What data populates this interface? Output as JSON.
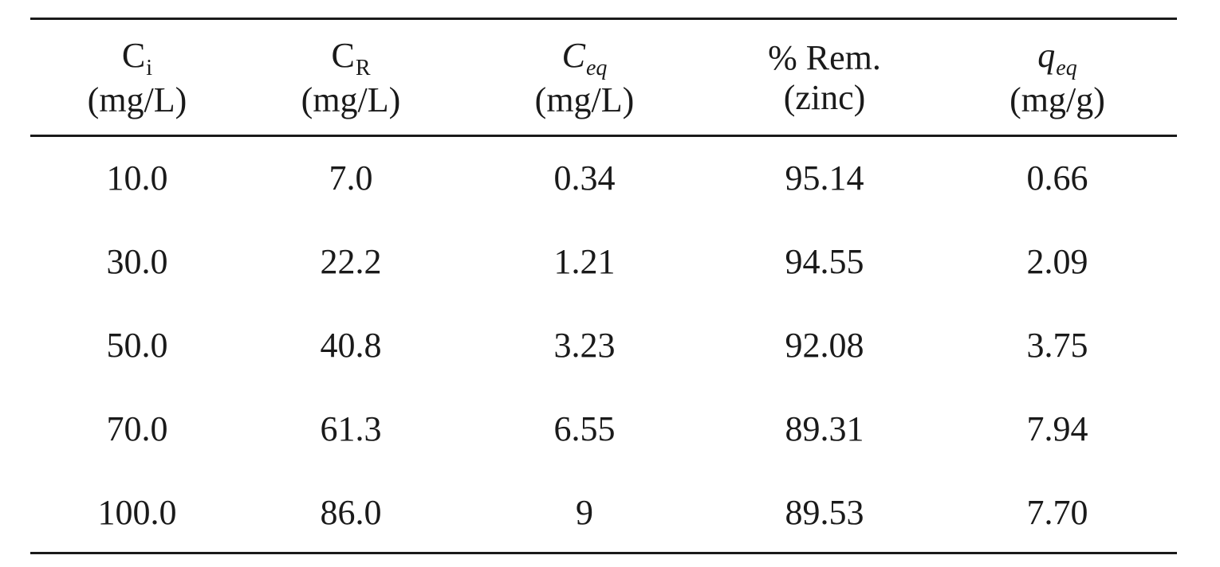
{
  "table": {
    "headers": [
      {
        "symbol": "C",
        "subscript": "i",
        "italic": false,
        "unit": "(mg/L)"
      },
      {
        "symbol": "C",
        "subscript": "R",
        "italic": false,
        "unit": "(mg/L)"
      },
      {
        "symbol": "C",
        "subscript": "eq",
        "italic": true,
        "unit": "(mg/L)"
      },
      {
        "symbol": "% Rem.",
        "subscript": "",
        "italic": false,
        "unit": "(zinc)"
      },
      {
        "symbol": "q",
        "subscript": "eq",
        "italic": true,
        "unit": "(mg/g)"
      }
    ],
    "rows": [
      [
        "10.0",
        "7.0",
        "0.34",
        "95.14",
        "0.66"
      ],
      [
        "30.0",
        "22.2",
        "1.21",
        "94.55",
        "2.09"
      ],
      [
        "50.0",
        "40.8",
        "3.23",
        "92.08",
        "3.75"
      ],
      [
        "70.0",
        "61.3",
        "6.55",
        "89.31",
        "7.94"
      ],
      [
        "100.0",
        "86.0",
        "9",
        "89.53",
        "7.70"
      ]
    ]
  }
}
